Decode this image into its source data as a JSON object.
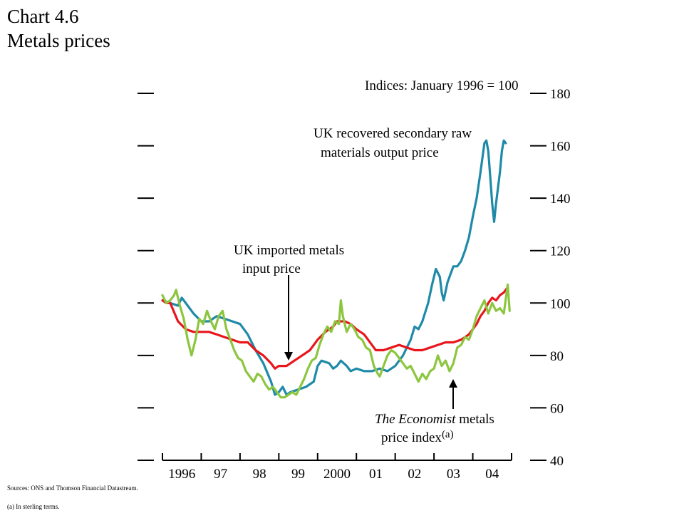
{
  "header": {
    "title_line1": "Chart 4.6",
    "title_line2": "Metals prices"
  },
  "footer": {
    "sources": "Sources:  ONS and Thomson Financial Datastream.",
    "note": "(a)  In sterling terms."
  },
  "colors": {
    "recovered": "#1f8aa8",
    "imported": "#e8161c",
    "economist": "#8cc63f"
  },
  "chart_data": {
    "type": "line",
    "units_note": "Indices:  January 1996 = 100",
    "ylim": [
      40,
      180
    ],
    "y_ticks": [
      40,
      60,
      80,
      100,
      120,
      140,
      160,
      180
    ],
    "x_range": [
      1996.0,
      2005.0
    ],
    "x_tick_labels": [
      "1996",
      "97",
      "98",
      "99",
      "2000",
      "01",
      "02",
      "03",
      "04"
    ],
    "x_label_positions": [
      1996.5,
      1997.5,
      1998.5,
      1999.5,
      2000.5,
      2001.5,
      2002.5,
      2003.5,
      2004.5
    ],
    "grid": false,
    "series": [
      {
        "name": "UK recovered secondary raw materials output price",
        "label_line1": "UK recovered secondary raw",
        "label_line2": "materials output price",
        "color_key": "recovered",
        "points": [
          [
            1996.0,
            101
          ],
          [
            1996.2,
            100
          ],
          [
            1996.4,
            99
          ],
          [
            1996.5,
            102
          ],
          [
            1996.6,
            100
          ],
          [
            1996.8,
            96
          ],
          [
            1997.0,
            93
          ],
          [
            1997.2,
            93
          ],
          [
            1997.4,
            95
          ],
          [
            1997.6,
            94
          ],
          [
            1997.8,
            93
          ],
          [
            1998.0,
            92
          ],
          [
            1998.2,
            88
          ],
          [
            1998.4,
            82
          ],
          [
            1998.6,
            77
          ],
          [
            1998.8,
            70
          ],
          [
            1998.9,
            65
          ],
          [
            1999.0,
            66
          ],
          [
            1999.1,
            68
          ],
          [
            1999.2,
            65
          ],
          [
            1999.3,
            66
          ],
          [
            1999.5,
            67
          ],
          [
            1999.7,
            68
          ],
          [
            1999.9,
            70
          ],
          [
            2000.0,
            76
          ],
          [
            2000.1,
            78
          ],
          [
            2000.3,
            77
          ],
          [
            2000.4,
            75
          ],
          [
            2000.5,
            76
          ],
          [
            2000.6,
            78
          ],
          [
            2000.75,
            76
          ],
          [
            2000.85,
            74
          ],
          [
            2001.0,
            75
          ],
          [
            2001.2,
            74
          ],
          [
            2001.4,
            74
          ],
          [
            2001.6,
            75
          ],
          [
            2001.8,
            74
          ],
          [
            2002.0,
            76
          ],
          [
            2002.2,
            80
          ],
          [
            2002.4,
            86
          ],
          [
            2002.5,
            91
          ],
          [
            2002.6,
            90
          ],
          [
            2002.7,
            93
          ],
          [
            2002.85,
            100
          ],
          [
            2002.95,
            107
          ],
          [
            2003.05,
            113
          ],
          [
            2003.15,
            110
          ],
          [
            2003.2,
            104
          ],
          [
            2003.25,
            101
          ],
          [
            2003.35,
            108
          ],
          [
            2003.5,
            114
          ],
          [
            2003.6,
            114
          ],
          [
            2003.7,
            116
          ],
          [
            2003.8,
            120
          ],
          [
            2003.9,
            125
          ],
          [
            2004.0,
            133
          ],
          [
            2004.1,
            140
          ],
          [
            2004.2,
            150
          ],
          [
            2004.3,
            161
          ],
          [
            2004.35,
            162
          ],
          [
            2004.4,
            158
          ],
          [
            2004.45,
            148
          ],
          [
            2004.5,
            138
          ],
          [
            2004.55,
            131
          ],
          [
            2004.6,
            138
          ],
          [
            2004.7,
            150
          ],
          [
            2004.75,
            158
          ],
          [
            2004.8,
            162
          ],
          [
            2004.85,
            161
          ]
        ]
      },
      {
        "name": "UK imported metals input price",
        "label_line1": "UK imported metals",
        "label_line2": "input price",
        "color_key": "imported",
        "points": [
          [
            1996.0,
            101
          ],
          [
            1996.1,
            100
          ],
          [
            1996.2,
            100
          ],
          [
            1996.4,
            93
          ],
          [
            1996.6,
            90
          ],
          [
            1996.8,
            89
          ],
          [
            1997.0,
            89
          ],
          [
            1997.2,
            89
          ],
          [
            1997.4,
            88
          ],
          [
            1997.6,
            87
          ],
          [
            1997.8,
            86
          ],
          [
            1998.0,
            85
          ],
          [
            1998.2,
            85
          ],
          [
            1998.4,
            82
          ],
          [
            1998.6,
            80
          ],
          [
            1998.8,
            77
          ],
          [
            1998.9,
            75
          ],
          [
            1999.0,
            76
          ],
          [
            1999.2,
            76
          ],
          [
            1999.4,
            78
          ],
          [
            1999.6,
            80
          ],
          [
            1999.8,
            82
          ],
          [
            2000.0,
            86
          ],
          [
            2000.2,
            89
          ],
          [
            2000.4,
            91
          ],
          [
            2000.5,
            93
          ],
          [
            2000.7,
            93
          ],
          [
            2000.85,
            92
          ],
          [
            2001.0,
            90
          ],
          [
            2001.2,
            88
          ],
          [
            2001.4,
            84
          ],
          [
            2001.5,
            82
          ],
          [
            2001.7,
            82
          ],
          [
            2001.9,
            83
          ],
          [
            2002.1,
            84
          ],
          [
            2002.3,
            83
          ],
          [
            2002.5,
            82
          ],
          [
            2002.7,
            82
          ],
          [
            2002.9,
            83
          ],
          [
            2003.1,
            84
          ],
          [
            2003.3,
            85
          ],
          [
            2003.5,
            85
          ],
          [
            2003.7,
            86
          ],
          [
            2003.9,
            88
          ],
          [
            2004.0,
            90
          ],
          [
            2004.1,
            92
          ],
          [
            2004.2,
            95
          ],
          [
            2004.3,
            97
          ],
          [
            2004.4,
            100
          ],
          [
            2004.5,
            102
          ],
          [
            2004.6,
            101
          ],
          [
            2004.7,
            103
          ],
          [
            2004.8,
            104
          ],
          [
            2004.9,
            106
          ]
        ]
      },
      {
        "name": "The Economist metals price index(a)",
        "label_line1_italic": "The Economist",
        "label_line1_rest": " metals",
        "label_line2": "price index",
        "label_sup": "(a)",
        "color_key": "economist",
        "points": [
          [
            1996.0,
            103
          ],
          [
            1996.1,
            100
          ],
          [
            1996.2,
            101
          ],
          [
            1996.3,
            103
          ],
          [
            1996.35,
            105
          ],
          [
            1996.45,
            99
          ],
          [
            1996.55,
            94
          ],
          [
            1996.65,
            86
          ],
          [
            1996.75,
            80
          ],
          [
            1996.85,
            86
          ],
          [
            1996.95,
            94
          ],
          [
            1997.05,
            92
          ],
          [
            1997.15,
            97
          ],
          [
            1997.25,
            93
          ],
          [
            1997.35,
            90
          ],
          [
            1997.45,
            95
          ],
          [
            1997.55,
            97
          ],
          [
            1997.65,
            90
          ],
          [
            1997.75,
            86
          ],
          [
            1997.85,
            82
          ],
          [
            1997.95,
            79
          ],
          [
            1998.05,
            78
          ],
          [
            1998.15,
            74
          ],
          [
            1998.25,
            72
          ],
          [
            1998.35,
            70
          ],
          [
            1998.45,
            73
          ],
          [
            1998.55,
            72
          ],
          [
            1998.65,
            69
          ],
          [
            1998.75,
            67
          ],
          [
            1998.85,
            68
          ],
          [
            1998.95,
            66
          ],
          [
            1999.05,
            64
          ],
          [
            1999.15,
            64
          ],
          [
            1999.25,
            65
          ],
          [
            1999.35,
            66
          ],
          [
            1999.45,
            65
          ],
          [
            1999.55,
            68
          ],
          [
            1999.65,
            71
          ],
          [
            1999.75,
            75
          ],
          [
            1999.85,
            78
          ],
          [
            1999.95,
            79
          ],
          [
            2000.05,
            84
          ],
          [
            2000.15,
            88
          ],
          [
            2000.25,
            91
          ],
          [
            2000.35,
            89
          ],
          [
            2000.45,
            93
          ],
          [
            2000.55,
            92
          ],
          [
            2000.6,
            101
          ],
          [
            2000.65,
            95
          ],
          [
            2000.75,
            89
          ],
          [
            2000.85,
            92
          ],
          [
            2000.95,
            90
          ],
          [
            2001.05,
            87
          ],
          [
            2001.15,
            86
          ],
          [
            2001.25,
            83
          ],
          [
            2001.35,
            82
          ],
          [
            2001.45,
            76
          ],
          [
            2001.55,
            73
          ],
          [
            2001.6,
            72
          ],
          [
            2001.7,
            76
          ],
          [
            2001.8,
            80
          ],
          [
            2001.9,
            82
          ],
          [
            2002.0,
            81
          ],
          [
            2002.1,
            79
          ],
          [
            2002.2,
            77
          ],
          [
            2002.3,
            75
          ],
          [
            2002.4,
            76
          ],
          [
            2002.5,
            73
          ],
          [
            2002.6,
            70
          ],
          [
            2002.7,
            73
          ],
          [
            2002.8,
            71
          ],
          [
            2002.9,
            74
          ],
          [
            2003.0,
            75
          ],
          [
            2003.1,
            80
          ],
          [
            2003.2,
            76
          ],
          [
            2003.3,
            78
          ],
          [
            2003.4,
            74
          ],
          [
            2003.5,
            77
          ],
          [
            2003.6,
            83
          ],
          [
            2003.7,
            84
          ],
          [
            2003.8,
            87
          ],
          [
            2003.9,
            86
          ],
          [
            2004.0,
            90
          ],
          [
            2004.1,
            95
          ],
          [
            2004.2,
            98
          ],
          [
            2004.3,
            101
          ],
          [
            2004.4,
            96
          ],
          [
            2004.5,
            100
          ],
          [
            2004.6,
            97
          ],
          [
            2004.7,
            98
          ],
          [
            2004.8,
            96
          ],
          [
            2004.9,
            107
          ],
          [
            2004.95,
            97
          ]
        ]
      }
    ]
  }
}
